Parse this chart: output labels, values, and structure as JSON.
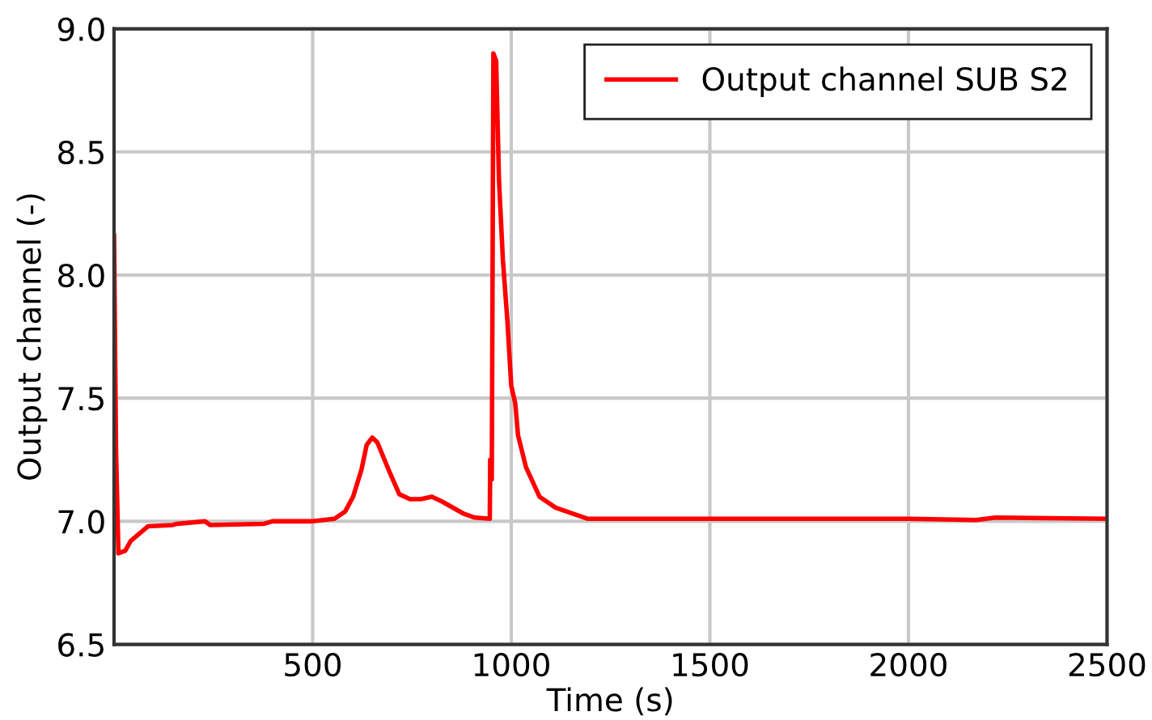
{
  "chart_data": {
    "type": "line",
    "xlabel": "Time (s)",
    "ylabel": "Output channel (-)",
    "series": [
      {
        "name": "Output channel SUB S2",
        "color": "#ff0000",
        "x": [
          0,
          5,
          11,
          28,
          42,
          86,
          148,
          159,
          229,
          242,
          378,
          399,
          500,
          555,
          582,
          602,
          623,
          636,
          650,
          663,
          691,
          718,
          745,
          772,
          800,
          826,
          881,
          908,
          946,
          947,
          951,
          955,
          962,
          969,
          979,
          990,
          1000,
          1010,
          1017,
          1037,
          1071,
          1112,
          1193,
          1400,
          1700,
          2000,
          2170,
          2220,
          2500
        ],
        "values": [
          8.16,
          7.29,
          6.87,
          6.88,
          6.92,
          6.98,
          6.985,
          6.99,
          7.0,
          6.985,
          6.99,
          7.0,
          7.0,
          7.01,
          7.04,
          7.1,
          7.21,
          7.31,
          7.34,
          7.32,
          7.21,
          7.11,
          7.09,
          7.09,
          7.1,
          7.08,
          7.03,
          7.015,
          7.01,
          7.25,
          7.17,
          8.9,
          8.87,
          8.39,
          8.06,
          7.82,
          7.55,
          7.48,
          7.35,
          7.22,
          7.1,
          7.055,
          7.01,
          7.01,
          7.01,
          7.01,
          7.005,
          7.015,
          7.01
        ]
      }
    ],
    "xlim": [
      0,
      2500
    ],
    "xticks": [
      500,
      1000,
      1500,
      2000,
      2500
    ],
    "ylim": [
      6.5,
      9.0
    ],
    "yticks": [
      6.5,
      {
        "value": 7,
        "label": "7.0"
      },
      7.5,
      {
        "value": 8,
        "label": "8.0"
      },
      8.5,
      {
        "value": 9,
        "label": "9.0"
      }
    ],
    "grid": true,
    "legend": "top right",
    "line_style": "solid",
    "marker": "none"
  }
}
